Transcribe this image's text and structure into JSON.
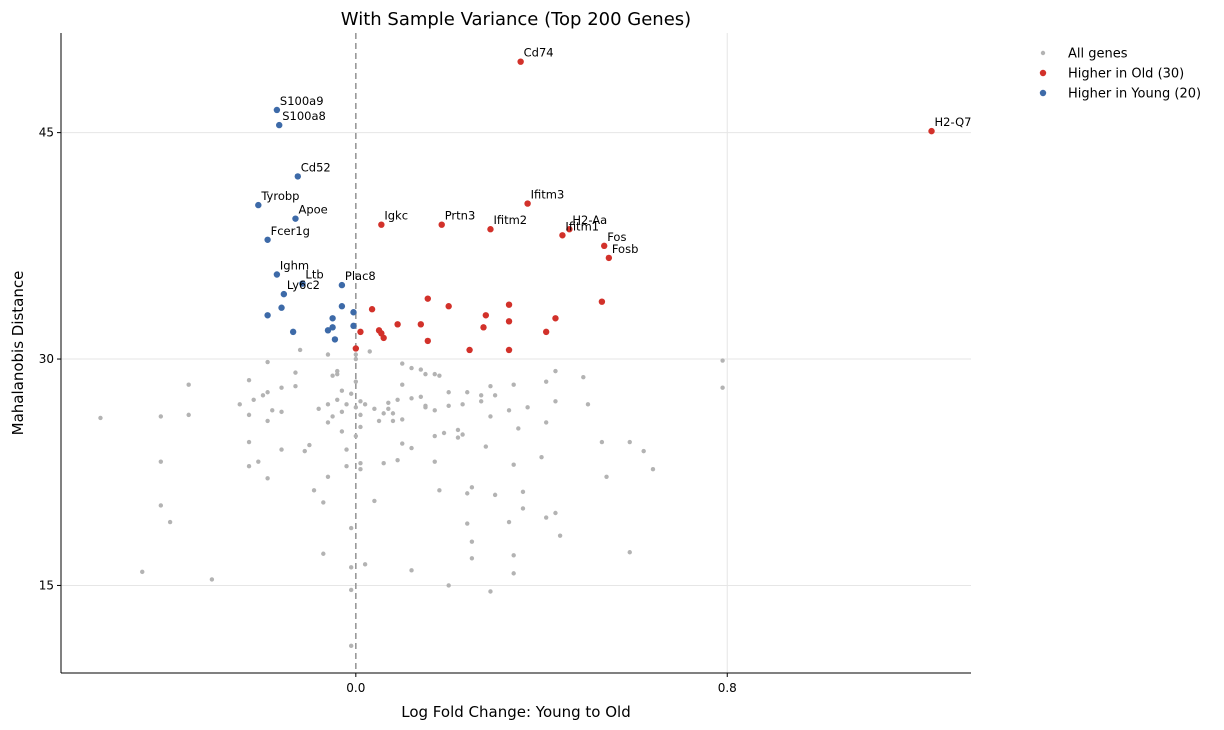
{
  "chart_data": {
    "type": "scatter",
    "title": "With Sample Variance (Top 200 Genes)",
    "xlabel": "Log Fold Change: Young to Old",
    "ylabel": "Mahalanobis Distance",
    "xlim": [
      -0.635,
      1.325
    ],
    "ylim": [
      9.2,
      51.6
    ],
    "xticks": [
      {
        "value": 0.0,
        "label": "0.0"
      },
      {
        "value": 0.8,
        "label": "0.8"
      }
    ],
    "yticks": [
      {
        "value": 15,
        "label": "15"
      },
      {
        "value": 30,
        "label": "30"
      },
      {
        "value": 45,
        "label": "45"
      }
    ],
    "grid": true,
    "vline": 0,
    "legend_position": "outside-right",
    "colors": {
      "all": "#b3b3b3",
      "old": "#d2312a",
      "young": "#3d6aa8",
      "vline": "#999999"
    },
    "series": [
      {
        "name": "All genes",
        "key": "all",
        "points": [
          [
            -0.55,
            26.1
          ],
          [
            -0.42,
            26.2
          ],
          [
            -0.36,
            26.3
          ],
          [
            -0.42,
            23.2
          ],
          [
            -0.36,
            28.3
          ],
          [
            -0.42,
            20.3
          ],
          [
            -0.4,
            19.2
          ],
          [
            -0.46,
            15.9
          ],
          [
            -0.31,
            15.4
          ],
          [
            -0.25,
            27.0
          ],
          [
            -0.23,
            28.6
          ],
          [
            -0.22,
            27.3
          ],
          [
            -0.2,
            27.6
          ],
          [
            -0.19,
            27.8
          ],
          [
            -0.23,
            26.3
          ],
          [
            -0.18,
            26.6
          ],
          [
            -0.16,
            26.5
          ],
          [
            -0.23,
            24.5
          ],
          [
            -0.23,
            22.9
          ],
          [
            -0.21,
            23.2
          ],
          [
            -0.19,
            22.1
          ],
          [
            -0.19,
            25.9
          ],
          [
            -0.16,
            24.0
          ],
          [
            -0.16,
            28.1
          ],
          [
            -0.13,
            28.2
          ],
          [
            -0.13,
            29.1
          ],
          [
            -0.19,
            29.8
          ],
          [
            -0.12,
            30.6
          ],
          [
            -0.06,
            30.3
          ],
          [
            -0.11,
            23.9
          ],
          [
            -0.1,
            24.3
          ],
          [
            -0.09,
            21.3
          ],
          [
            -0.08,
            26.7
          ],
          [
            -0.07,
            20.5
          ],
          [
            -0.07,
            17.1
          ],
          [
            -0.06,
            22.2
          ],
          [
            -0.06,
            25.8
          ],
          [
            -0.06,
            27.0
          ],
          [
            -0.05,
            28.9
          ],
          [
            -0.05,
            26.2
          ],
          [
            -0.04,
            29.2
          ],
          [
            -0.04,
            27.3
          ],
          [
            -0.04,
            29.0
          ],
          [
            -0.03,
            27.9
          ],
          [
            -0.03,
            26.5
          ],
          [
            -0.03,
            25.2
          ],
          [
            -0.02,
            27.0
          ],
          [
            -0.02,
            22.9
          ],
          [
            -0.02,
            24.0
          ],
          [
            -0.01,
            16.2
          ],
          [
            -0.01,
            27.7
          ],
          [
            -0.01,
            18.8
          ],
          [
            0.0,
            26.8
          ],
          [
            0.0,
            24.9
          ],
          [
            0.0,
            30.0
          ],
          [
            0.0,
            30.3
          ],
          [
            0.0,
            28.5
          ],
          [
            0.01,
            27.2
          ],
          [
            0.01,
            26.3
          ],
          [
            0.01,
            25.5
          ],
          [
            0.01,
            23.1
          ],
          [
            0.01,
            22.7
          ],
          [
            -0.01,
            14.7
          ],
          [
            -0.01,
            11.0
          ],
          [
            0.02,
            16.4
          ],
          [
            0.02,
            27.0
          ],
          [
            0.03,
            30.5
          ],
          [
            0.04,
            26.7
          ],
          [
            0.05,
            25.9
          ],
          [
            0.04,
            20.6
          ],
          [
            0.06,
            26.4
          ],
          [
            0.06,
            23.1
          ],
          [
            0.07,
            27.1
          ],
          [
            0.07,
            26.7
          ],
          [
            0.08,
            26.4
          ],
          [
            0.08,
            25.9
          ],
          [
            0.09,
            23.3
          ],
          [
            0.1,
            29.7
          ],
          [
            0.1,
            28.3
          ],
          [
            0.09,
            27.3
          ],
          [
            0.1,
            26.0
          ],
          [
            0.1,
            24.4
          ],
          [
            0.12,
            29.4
          ],
          [
            0.12,
            27.4
          ],
          [
            0.12,
            24.1
          ],
          [
            0.14,
            29.3
          ],
          [
            0.15,
            29.0
          ],
          [
            0.14,
            27.5
          ],
          [
            0.15,
            26.8
          ],
          [
            0.15,
            26.9
          ],
          [
            0.17,
            29.0
          ],
          [
            0.18,
            28.9
          ],
          [
            0.17,
            26.6
          ],
          [
            0.17,
            24.9
          ],
          [
            0.17,
            23.2
          ],
          [
            0.12,
            16.0
          ],
          [
            0.2,
            27.8
          ],
          [
            0.2,
            26.9
          ],
          [
            0.18,
            21.3
          ],
          [
            0.19,
            25.1
          ],
          [
            0.2,
            15.0
          ],
          [
            0.22,
            24.8
          ],
          [
            0.23,
            25.0
          ],
          [
            0.22,
            25.3
          ],
          [
            0.23,
            27.0
          ],
          [
            0.24,
            19.1
          ],
          [
            0.24,
            21.1
          ],
          [
            0.25,
            21.5
          ],
          [
            0.24,
            27.8
          ],
          [
            0.25,
            17.9
          ],
          [
            0.25,
            16.8
          ],
          [
            0.27,
            27.6
          ],
          [
            0.27,
            27.2
          ],
          [
            0.28,
            24.2
          ],
          [
            0.29,
            26.2
          ],
          [
            0.29,
            28.2
          ],
          [
            0.3,
            27.6
          ],
          [
            0.3,
            21.0
          ],
          [
            0.29,
            14.6
          ],
          [
            0.33,
            26.6
          ],
          [
            0.33,
            19.2
          ],
          [
            0.34,
            23.0
          ],
          [
            0.34,
            17.0
          ],
          [
            0.34,
            28.3
          ],
          [
            0.34,
            15.8
          ],
          [
            0.35,
            25.4
          ],
          [
            0.36,
            21.2
          ],
          [
            0.36,
            20.1
          ],
          [
            0.37,
            26.8
          ],
          [
            0.4,
            23.5
          ],
          [
            0.41,
            25.8
          ],
          [
            0.41,
            28.5
          ],
          [
            0.41,
            19.5
          ],
          [
            0.43,
            19.8
          ],
          [
            0.43,
            29.2
          ],
          [
            0.43,
            27.2
          ],
          [
            0.44,
            18.3
          ],
          [
            0.49,
            28.8
          ],
          [
            0.5,
            27.0
          ],
          [
            0.53,
            24.5
          ],
          [
            0.54,
            22.2
          ],
          [
            0.59,
            24.5
          ],
          [
            0.59,
            17.2
          ],
          [
            0.62,
            23.9
          ],
          [
            0.64,
            22.7
          ],
          [
            0.79,
            29.9
          ],
          [
            0.79,
            28.1
          ]
        ]
      },
      {
        "name": "Higher in Old (30)",
        "key": "old",
        "points": [
          [
            0.355,
            49.7
          ],
          [
            0.37,
            40.3
          ],
          [
            0.46,
            38.6
          ],
          [
            0.445,
            38.2
          ],
          [
            0.055,
            38.9
          ],
          [
            0.185,
            38.9
          ],
          [
            0.29,
            38.6
          ],
          [
            0.535,
            37.5
          ],
          [
            0.545,
            36.7
          ],
          [
            0.53,
            33.8
          ],
          [
            0.43,
            32.7
          ],
          [
            0.41,
            31.8
          ],
          [
            0.33,
            33.6
          ],
          [
            0.33,
            32.5
          ],
          [
            0.28,
            32.9
          ],
          [
            0.275,
            32.1
          ],
          [
            0.2,
            33.5
          ],
          [
            0.155,
            34.0
          ],
          [
            0.035,
            33.3
          ],
          [
            0.09,
            32.3
          ],
          [
            0.14,
            32.3
          ],
          [
            0.05,
            31.9
          ],
          [
            0.055,
            31.7
          ],
          [
            0.06,
            31.4
          ],
          [
            0.01,
            31.8
          ],
          [
            0.155,
            31.2
          ],
          [
            0.245,
            30.6
          ],
          [
            0.33,
            30.6
          ],
          [
            0.0,
            30.7
          ],
          [
            1.24,
            45.1
          ]
        ]
      },
      {
        "name": "Higher in Young (20)",
        "key": "young",
        "points": [
          [
            -0.17,
            46.5
          ],
          [
            -0.165,
            45.5
          ],
          [
            -0.125,
            42.1
          ],
          [
            -0.21,
            40.2
          ],
          [
            -0.13,
            39.3
          ],
          [
            -0.19,
            37.9
          ],
          [
            -0.17,
            35.6
          ],
          [
            -0.115,
            35.0
          ],
          [
            -0.03,
            34.9
          ],
          [
            -0.155,
            34.3
          ],
          [
            -0.16,
            33.4
          ],
          [
            -0.03,
            33.5
          ],
          [
            -0.19,
            32.9
          ],
          [
            -0.005,
            33.1
          ],
          [
            -0.05,
            32.7
          ],
          [
            -0.05,
            32.1
          ],
          [
            -0.005,
            32.2
          ],
          [
            -0.06,
            31.9
          ],
          [
            -0.135,
            31.8
          ],
          [
            -0.045,
            31.3
          ]
        ]
      }
    ],
    "annotations": [
      {
        "text": "Cd74",
        "x": 0.355,
        "y": 49.7
      },
      {
        "text": "S100a9",
        "x": -0.17,
        "y": 46.5
      },
      {
        "text": "S100a8",
        "x": -0.165,
        "y": 45.5
      },
      {
        "text": "H2-Q7",
        "x": 1.24,
        "y": 45.1
      },
      {
        "text": "Cd52",
        "x": -0.125,
        "y": 42.1
      },
      {
        "text": "Ifitm3",
        "x": 0.37,
        "y": 40.3
      },
      {
        "text": "Tyrobp",
        "x": -0.21,
        "y": 40.2
      },
      {
        "text": "Apoe",
        "x": -0.13,
        "y": 39.3
      },
      {
        "text": "Igkc",
        "x": 0.055,
        "y": 38.9
      },
      {
        "text": "Prtn3",
        "x": 0.185,
        "y": 38.9
      },
      {
        "text": "Ifitm2",
        "x": 0.29,
        "y": 38.6
      },
      {
        "text": "H2-Aa",
        "x": 0.46,
        "y": 38.6
      },
      {
        "text": "Ifitm1",
        "x": 0.445,
        "y": 38.2
      },
      {
        "text": "Fcer1g",
        "x": -0.19,
        "y": 37.9
      },
      {
        "text": "Fos",
        "x": 0.535,
        "y": 37.5
      },
      {
        "text": "Fosb",
        "x": 0.545,
        "y": 36.7
      },
      {
        "text": "Ighm",
        "x": -0.17,
        "y": 35.6
      },
      {
        "text": "Ltb",
        "x": -0.115,
        "y": 35.0
      },
      {
        "text": "Plac8",
        "x": -0.03,
        "y": 34.9
      },
      {
        "text": "Ly6c2",
        "x": -0.155,
        "y": 34.3
      }
    ]
  }
}
